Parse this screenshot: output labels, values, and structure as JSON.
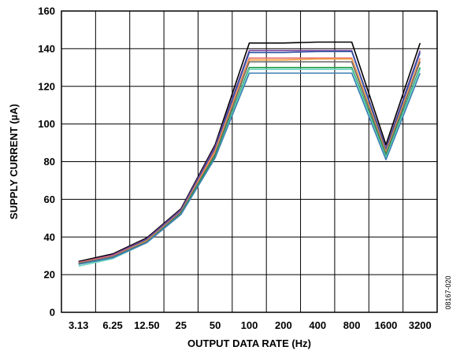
{
  "chart_data": {
    "type": "line",
    "title": "",
    "xlabel": "OUTPUT DATA RATE (Hz)",
    "ylabel": "SUPPLY CURRENT (µA)",
    "categories": [
      "3.13",
      "6.25",
      "12.50",
      "25",
      "50",
      "100",
      "200",
      "400",
      "800",
      "1600",
      "3200"
    ],
    "ylim": [
      0,
      160
    ],
    "yticks": [
      "0",
      "20",
      "40",
      "60",
      "80",
      "100",
      "120",
      "140",
      "160"
    ],
    "grid": true,
    "legend": "none",
    "figure_id": "08167-020",
    "series": [
      {
        "color": "#000000",
        "values": [
          27,
          31,
          39.5,
          55,
          89,
          143,
          143,
          143.5,
          143.5,
          89,
          143
        ]
      },
      {
        "color": "#7b3f98",
        "values": [
          26.5,
          30.5,
          39,
          54.5,
          88,
          139,
          139,
          139,
          139,
          87,
          139
        ]
      },
      {
        "color": "#2e56a6",
        "values": [
          26,
          30,
          38.5,
          54,
          87,
          138,
          138,
          138.5,
          138.5,
          86,
          138
        ]
      },
      {
        "color": "#e8706f",
        "values": [
          26.5,
          30,
          38,
          53.5,
          86,
          135,
          135,
          135,
          135,
          85,
          135
        ]
      },
      {
        "color": "#f4a23c",
        "values": [
          26,
          29.5,
          38,
          53,
          85,
          134,
          134,
          134.5,
          134.5,
          85,
          134
        ]
      },
      {
        "color": "#6b6b6b",
        "values": [
          26,
          29.5,
          37.5,
          53,
          84,
          133,
          133,
          133,
          133,
          84,
          133
        ]
      },
      {
        "color": "#1e9a4a",
        "values": [
          25.5,
          29,
          37,
          52.5,
          83,
          130,
          130,
          130,
          130,
          83,
          130
        ]
      },
      {
        "color": "#6bd3c0",
        "values": [
          24.5,
          28.5,
          37,
          52,
          82,
          129,
          129,
          129,
          129,
          82,
          129
        ]
      },
      {
        "color": "#3d7fb3",
        "values": [
          25.5,
          29,
          37,
          52,
          82,
          127,
          127,
          127,
          127,
          81,
          127
        ]
      }
    ]
  }
}
